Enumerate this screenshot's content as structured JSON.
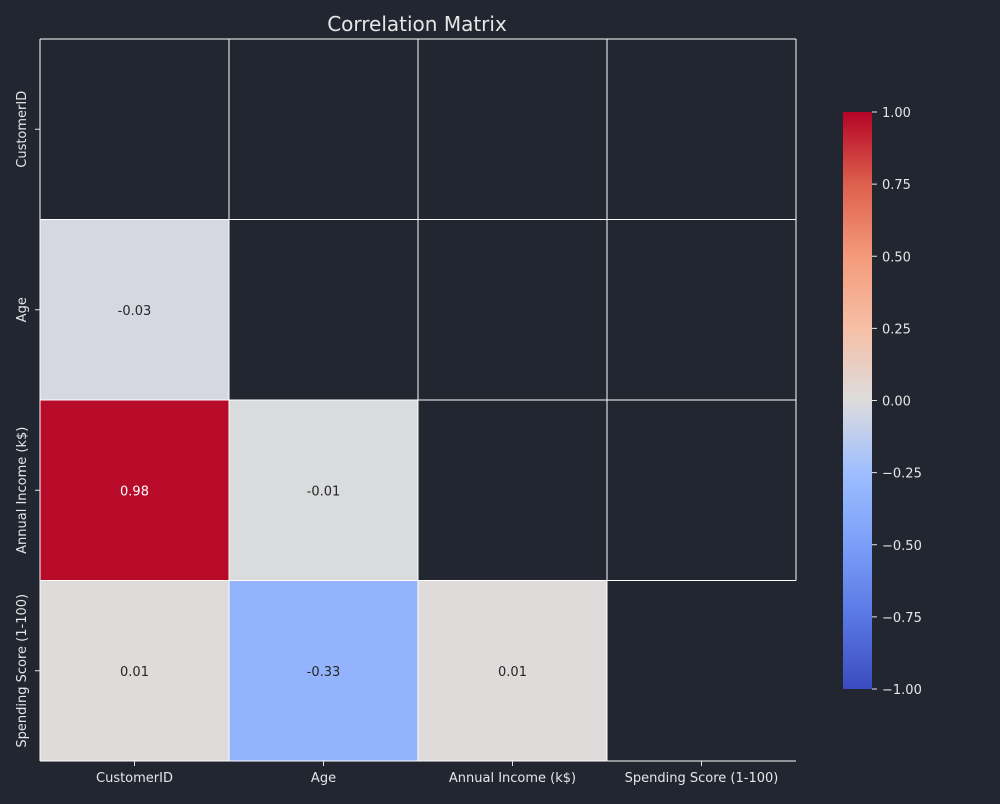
{
  "chart_data": {
    "type": "heatmap",
    "title": "Correlation Matrix",
    "labels": [
      "CustomerID",
      "Age",
      "Annual Income (k$)",
      "Spending Score (1-100)"
    ],
    "mask": "upper-triangle-including-diagonal",
    "cells": [
      {
        "row": "Age",
        "col": "CustomerID",
        "value": -0.03,
        "label": "-0.03"
      },
      {
        "row": "Annual Income (k$)",
        "col": "CustomerID",
        "value": 0.98,
        "label": "0.98"
      },
      {
        "row": "Annual Income (k$)",
        "col": "Age",
        "value": -0.01,
        "label": "-0.01"
      },
      {
        "row": "Spending Score (1-100)",
        "col": "CustomerID",
        "value": 0.01,
        "label": "0.01"
      },
      {
        "row": "Spending Score (1-100)",
        "col": "Age",
        "value": -0.33,
        "label": "-0.33"
      },
      {
        "row": "Spending Score (1-100)",
        "col": "Annual Income (k$)",
        "value": 0.01,
        "label": "0.01"
      }
    ],
    "colorbar": {
      "colormap": "coolwarm",
      "range": [
        -1.0,
        1.0
      ],
      "ticks": [
        "1.00",
        "0.75",
        "0.50",
        "0.25",
        "0.00",
        "−0.25",
        "−0.50",
        "−0.75",
        "−1.00"
      ]
    },
    "colors": {
      "background": "#212631",
      "text": "#e6e6e6",
      "gridlines": "#ffffff"
    }
  }
}
